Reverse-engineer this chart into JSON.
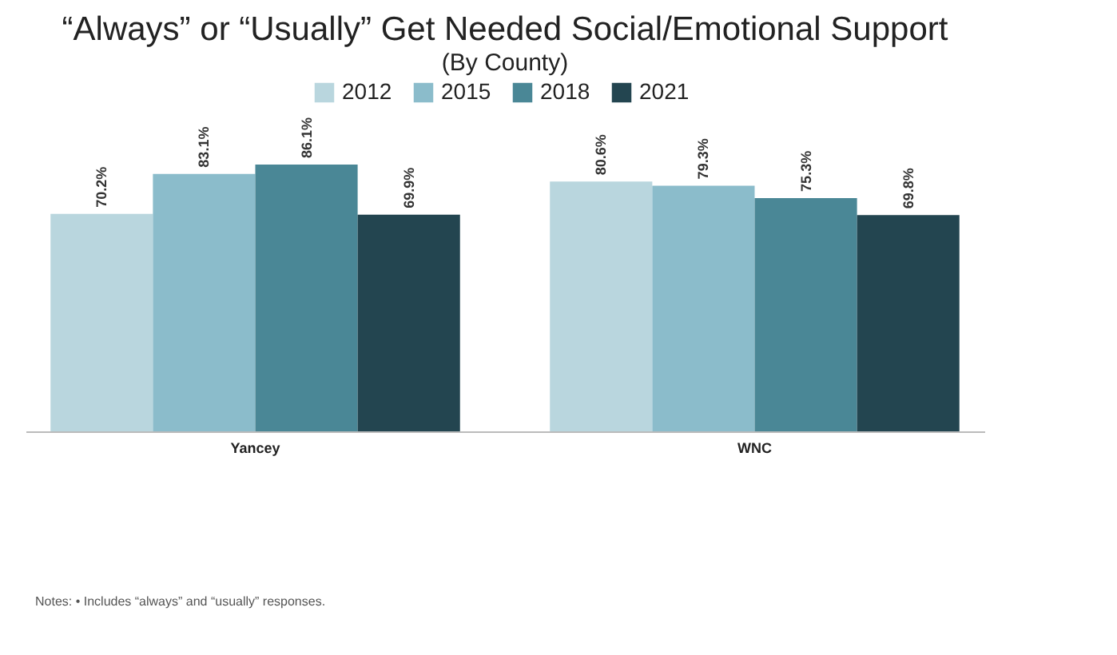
{
  "chart_data": {
    "type": "bar",
    "title": "“Always” or “Usually” Get Needed Social/Emotional Support",
    "subtitle": "(By County)",
    "categories": [
      "Yancey",
      "WNC"
    ],
    "series": [
      {
        "name": "2012",
        "color": "#b9d6de",
        "values": [
          70.2,
          80.6
        ],
        "value_labels": [
          "70.2%",
          "80.6%"
        ]
      },
      {
        "name": "2015",
        "color": "#8bbccb",
        "values": [
          83.1,
          79.3
        ],
        "value_labels": [
          "83.1%",
          "79.3%"
        ]
      },
      {
        "name": "2018",
        "color": "#4a8796",
        "values": [
          86.1,
          75.3
        ],
        "value_labels": [
          "86.1%",
          "75.3%"
        ]
      },
      {
        "name": "2021",
        "color": "#234550",
        "values": [
          69.9,
          69.8
        ],
        "value_labels": [
          "69.9%",
          "69.8%"
        ]
      }
    ],
    "legend": "top",
    "tick_labels": "x",
    "annotations": [
      "Notes:  •  Includes “always” and “usually” responses."
    ]
  }
}
